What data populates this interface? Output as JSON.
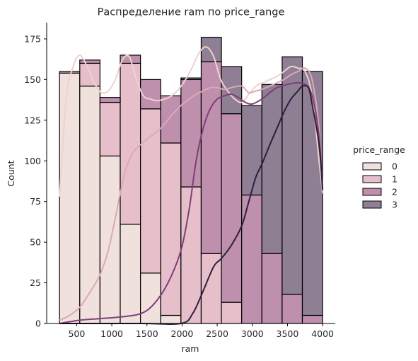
{
  "chart_data": {
    "type": "histogram",
    "title": "Распределение ram по price_range",
    "xlabel": "ram",
    "ylabel": "Count",
    "xlim": [
      73,
      4180
    ],
    "ylim": [
      0,
      185
    ],
    "xticks": [
      500,
      1000,
      1500,
      2000,
      2500,
      3000,
      3500,
      4000
    ],
    "yticks": [
      0,
      25,
      50,
      75,
      100,
      125,
      150,
      175
    ],
    "bin_edges": [
      256,
      544,
      832,
      1120,
      1408,
      1696,
      1984,
      2272,
      2560,
      2848,
      3136,
      3424,
      3712,
      4000
    ],
    "multiple": "stack",
    "grid": false,
    "legend": {
      "title": "price_range",
      "placement": "right"
    },
    "series": [
      {
        "name": "0",
        "color": "#f1e1dd",
        "line_color": "#efd2cd",
        "values": [
          154,
          146,
          103,
          61,
          31,
          5,
          0,
          0,
          0,
          0,
          0,
          0,
          0
        ]
      },
      {
        "name": "1",
        "color": "#e7bfca",
        "line_color": "#dba9b5",
        "values": [
          1,
          14,
          33,
          99,
          101,
          106,
          84,
          43,
          13,
          0,
          0,
          0,
          0
        ]
      },
      {
        "name": "2",
        "color": "#bf8fae",
        "line_color": "#7d3f75",
        "values": [
          0,
          2,
          3,
          5,
          18,
          29,
          66,
          118,
          116,
          79,
          43,
          18,
          5
        ]
      },
      {
        "name": "3",
        "color": "#8e7f94",
        "line_color": "#2d1f3b",
        "values": [
          0,
          0,
          0,
          0,
          0,
          0,
          1,
          15,
          29,
          55,
          104,
          146,
          150
        ]
      }
    ],
    "kde_curves": [
      {
        "name": "0",
        "points": [
          [
            256,
            78
          ],
          [
            350,
            138
          ],
          [
            450,
            158
          ],
          [
            544,
            165
          ],
          [
            650,
            158
          ],
          [
            750,
            148
          ],
          [
            850,
            142
          ],
          [
            950,
            143
          ],
          [
            1050,
            150
          ],
          [
            1150,
            162
          ],
          [
            1250,
            164
          ],
          [
            1350,
            150
          ],
          [
            1450,
            140
          ],
          [
            1550,
            138
          ],
          [
            1650,
            137
          ],
          [
            1750,
            138
          ],
          [
            1850,
            140
          ],
          [
            1950,
            144
          ],
          [
            2050,
            150
          ],
          [
            2150,
            158
          ],
          [
            2250,
            167
          ],
          [
            2350,
            170
          ],
          [
            2450,
            164
          ],
          [
            2550,
            150
          ],
          [
            2650,
            143
          ],
          [
            2750,
            138
          ],
          [
            2850,
            136
          ],
          [
            2950,
            141
          ],
          [
            3050,
            146
          ],
          [
            3150,
            148
          ],
          [
            3250,
            150
          ],
          [
            3350,
            152
          ],
          [
            3450,
            155
          ],
          [
            3550,
            158
          ],
          [
            3650,
            157
          ],
          [
            3750,
            155
          ],
          [
            3850,
            140
          ],
          [
            3950,
            100
          ],
          [
            4000,
            80
          ]
        ]
      },
      {
        "name": "1",
        "points": [
          [
            256,
            2
          ],
          [
            400,
            5
          ],
          [
            544,
            10
          ],
          [
            700,
            20
          ],
          [
            832,
            30
          ],
          [
            950,
            45
          ],
          [
            1050,
            65
          ],
          [
            1120,
            80
          ],
          [
            1200,
            95
          ],
          [
            1300,
            105
          ],
          [
            1408,
            110
          ],
          [
            1550,
            115
          ],
          [
            1696,
            120
          ],
          [
            1850,
            128
          ],
          [
            1984,
            134
          ],
          [
            2100,
            138
          ],
          [
            2200,
            141
          ],
          [
            2300,
            143
          ],
          [
            2400,
            145
          ],
          [
            2500,
            145
          ],
          [
            2600,
            144
          ],
          [
            2700,
            145
          ],
          [
            2848,
            146
          ],
          [
            2950,
            142
          ],
          [
            3050,
            143
          ],
          [
            3136,
            144
          ],
          [
            3250,
            146
          ],
          [
            3350,
            148
          ],
          [
            3450,
            150
          ],
          [
            3550,
            153
          ],
          [
            3650,
            155
          ],
          [
            3750,
            157
          ],
          [
            3850,
            150
          ],
          [
            3950,
            120
          ],
          [
            4000,
            80
          ]
        ]
      },
      {
        "name": "2",
        "points": [
          [
            256,
            0
          ],
          [
            544,
            2
          ],
          [
            832,
            3
          ],
          [
            1120,
            4
          ],
          [
            1408,
            6
          ],
          [
            1600,
            12
          ],
          [
            1800,
            25
          ],
          [
            1984,
            45
          ],
          [
            2100,
            70
          ],
          [
            2200,
            100
          ],
          [
            2300,
            120
          ],
          [
            2400,
            132
          ],
          [
            2500,
            138
          ],
          [
            2600,
            140
          ],
          [
            2700,
            141
          ],
          [
            2800,
            139
          ],
          [
            2900,
            136
          ],
          [
            3000,
            135
          ],
          [
            3136,
            138
          ],
          [
            3250,
            142
          ],
          [
            3350,
            145
          ],
          [
            3500,
            147
          ],
          [
            3650,
            148
          ],
          [
            3750,
            147
          ],
          [
            3850,
            140
          ],
          [
            3950,
            115
          ],
          [
            4000,
            82
          ]
        ]
      },
      {
        "name": "3",
        "points": [
          [
            256,
            0
          ],
          [
            1408,
            0
          ],
          [
            1984,
            0
          ],
          [
            2150,
            6
          ],
          [
            2300,
            20
          ],
          [
            2450,
            35
          ],
          [
            2560,
            40
          ],
          [
            2700,
            48
          ],
          [
            2848,
            60
          ],
          [
            2950,
            75
          ],
          [
            3050,
            90
          ],
          [
            3136,
            98
          ],
          [
            3250,
            110
          ],
          [
            3350,
            120
          ],
          [
            3450,
            130
          ],
          [
            3550,
            138
          ],
          [
            3650,
            143
          ],
          [
            3712,
            146
          ],
          [
            3800,
            145
          ],
          [
            3850,
            135
          ],
          [
            3950,
            110
          ],
          [
            4000,
            82
          ]
        ]
      }
    ]
  }
}
